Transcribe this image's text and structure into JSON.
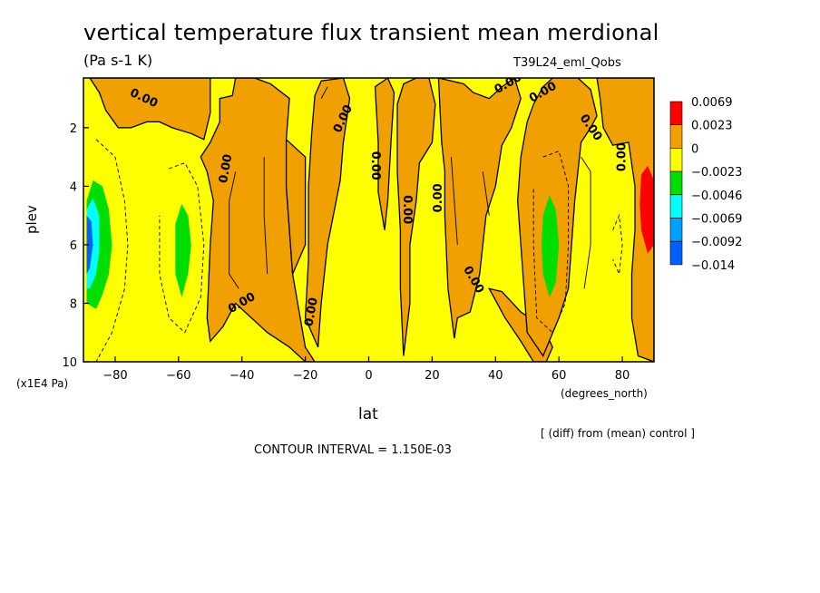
{
  "chart_data": {
    "type": "heatmap",
    "title": "vertical temperature flux transient mean merdional",
    "subtitle": "(Pa s-1 K)",
    "run_label": "T39L24_eml_Qobs",
    "xlabel": "lat",
    "x_unit": "(degrees_north)",
    "ylabel": "plev",
    "y_unit": "(x1E4 Pa)",
    "xlim": [
      -90,
      90
    ],
    "ylim": [
      10,
      0.3
    ],
    "x_ticks": [
      -80,
      -60,
      -40,
      -20,
      0,
      20,
      40,
      60,
      80
    ],
    "x_tick_labels": [
      "−80",
      "−60",
      "−40",
      "−20",
      "0",
      "20",
      "40",
      "60",
      "80"
    ],
    "y_ticks": [
      2,
      4,
      6,
      8,
      10
    ],
    "y_tick_labels": [
      "2",
      "4",
      "6",
      "8",
      "10"
    ],
    "contour_label": "0.00",
    "legend": {
      "placement": "right",
      "levels": [
        "0.0069",
        "0.0023",
        "0",
        "−0.0023",
        "−0.0046",
        "−0.0069",
        "−0.0092",
        "−0.014"
      ],
      "colors": [
        "#ff0000",
        "#f0a000",
        "#ffff00",
        "#00dd00",
        "#00ffff",
        "#00a0ff",
        "#0060ff"
      ]
    },
    "footer_note": "[ (diff) from (mean) control ]",
    "contour_interval": "CONTOUR INTERVAL = 1.150E-03",
    "regions": [
      {
        "level": "orange",
        "pts": [
          [
            -88,
            0.3
          ],
          [
            -85,
            0.8
          ],
          [
            -83,
            1.4
          ],
          [
            -79,
            2.0
          ],
          [
            -75,
            2.0
          ],
          [
            -70,
            1.8
          ],
          [
            -66,
            1.8
          ],
          [
            -62,
            2.0
          ],
          [
            -56,
            2.2
          ],
          [
            -52,
            2.4
          ],
          [
            -50,
            1.5
          ],
          [
            -50,
            0.3
          ]
        ]
      },
      {
        "level": "orange",
        "pts": [
          [
            -47,
            1.0
          ],
          [
            -43,
            0.9
          ],
          [
            -42,
            0.3
          ],
          [
            -36,
            0.3
          ],
          [
            -31,
            0.5
          ],
          [
            -25,
            1.0
          ],
          [
            -26,
            2.4
          ],
          [
            -26,
            4.0
          ],
          [
            -25,
            5.5
          ],
          [
            -24,
            7.0
          ],
          [
            -20,
            9.5
          ],
          [
            -17,
            10
          ],
          [
            -20,
            10
          ],
          [
            -25,
            9.5
          ],
          [
            -32,
            9.0
          ],
          [
            -37,
            8.5
          ],
          [
            -42,
            8.0
          ],
          [
            -46,
            8.8
          ],
          [
            -50,
            9.3
          ],
          [
            -51,
            8.5
          ],
          [
            -50,
            6.0
          ],
          [
            -49,
            4.5
          ],
          [
            -51,
            3.5
          ],
          [
            -53,
            3.0
          ],
          [
            -50,
            2.5
          ],
          [
            -47,
            1.8
          ]
        ]
      },
      {
        "level": "orange",
        "pts": [
          [
            -17,
            0.9
          ],
          [
            -15,
            0.4
          ],
          [
            -8,
            0.3
          ],
          [
            -6,
            1.0
          ],
          [
            -8,
            2.5
          ],
          [
            -9,
            3.8
          ],
          [
            -13,
            6.0
          ],
          [
            -15,
            8.0
          ],
          [
            -16,
            9.5
          ],
          [
            -20,
            8.5
          ],
          [
            -19,
            6.5
          ],
          [
            -19,
            4.0
          ],
          [
            -18,
            2.2
          ]
        ]
      },
      {
        "level": "orange",
        "pts": [
          [
            2,
            0.6
          ],
          [
            6,
            0.3
          ],
          [
            8,
            0.8
          ],
          [
            7,
            2.5
          ],
          [
            6,
            4.5
          ],
          [
            5,
            5.5
          ],
          [
            3,
            4.2
          ],
          [
            3,
            2.5
          ]
        ]
      },
      {
        "level": "orange",
        "pts": [
          [
            9,
            1.2
          ],
          [
            11,
            0.5
          ],
          [
            15,
            0.3
          ],
          [
            19,
            0.3
          ],
          [
            21,
            1.2
          ],
          [
            20,
            2.5
          ],
          [
            16,
            3.2
          ],
          [
            15,
            4.5
          ],
          [
            13,
            6.0
          ],
          [
            13,
            8.0
          ],
          [
            11,
            9.8
          ],
          [
            10,
            7.5
          ],
          [
            10,
            5.5
          ],
          [
            9,
            3.5
          ]
        ]
      },
      {
        "level": "orange",
        "pts": [
          [
            22,
            0.3
          ],
          [
            30,
            0.5
          ],
          [
            33,
            0.8
          ],
          [
            38,
            1.0
          ],
          [
            42,
            0.6
          ],
          [
            46,
            0.3
          ],
          [
            48,
            1.0
          ],
          [
            45,
            2.0
          ],
          [
            42,
            2.6
          ],
          [
            40,
            4.0
          ],
          [
            37,
            5.0
          ],
          [
            35,
            7.0
          ],
          [
            32,
            8.3
          ],
          [
            28,
            8.5
          ],
          [
            27,
            9.2
          ],
          [
            25,
            7.5
          ],
          [
            24,
            5.0
          ],
          [
            24,
            3.5
          ],
          [
            23,
            2.5
          ]
        ]
      },
      {
        "level": "orange",
        "pts": [
          [
            38,
            7.5
          ],
          [
            43,
            8.5
          ],
          [
            48,
            9.3
          ],
          [
            52,
            10
          ],
          [
            56,
            10
          ],
          [
            58,
            9.5
          ],
          [
            55,
            8.8
          ],
          [
            48,
            8.3
          ],
          [
            42,
            7.6
          ]
        ]
      },
      {
        "level": "orange",
        "pts": [
          [
            58,
            0.3
          ],
          [
            66,
            0.3
          ],
          [
            70,
            0.7
          ],
          [
            72,
            1.6
          ],
          [
            70,
            2.0
          ],
          [
            67,
            2.5
          ],
          [
            66,
            3.5
          ],
          [
            65,
            4.5
          ],
          [
            64,
            6.0
          ],
          [
            63,
            7.5
          ],
          [
            60,
            8.5
          ],
          [
            55,
            9.8
          ],
          [
            50,
            9.0
          ],
          [
            49,
            7.5
          ],
          [
            48,
            6.0
          ],
          [
            47,
            4.5
          ],
          [
            48,
            3.0
          ],
          [
            50,
            1.8
          ],
          [
            52,
            1.2
          ],
          [
            55,
            0.6
          ]
        ]
      },
      {
        "level": "orange",
        "pts": [
          [
            72,
            0.3
          ],
          [
            90,
            0.3
          ],
          [
            90,
            10
          ],
          [
            85,
            9.8
          ],
          [
            83,
            8.5
          ],
          [
            83,
            7.0
          ],
          [
            84,
            5.5
          ],
          [
            84,
            4.0
          ],
          [
            82,
            2.5
          ],
          [
            77,
            2.6
          ],
          [
            74,
            2.0
          ],
          [
            73,
            1.0
          ]
        ]
      },
      {
        "level": "orange",
        "pts": [
          [
            -26,
            2.4
          ],
          [
            -20,
            3.0
          ],
          [
            -20,
            6.0
          ],
          [
            -24,
            7.0
          ],
          [
            -25,
            5.5
          ],
          [
            -26,
            4.0
          ]
        ]
      },
      {
        "level": "green",
        "pts": [
          [
            -89,
            4.5
          ],
          [
            -87,
            3.8
          ],
          [
            -84,
            4.0
          ],
          [
            -82,
            4.8
          ],
          [
            -81,
            6.0
          ],
          [
            -82,
            7.0
          ],
          [
            -84,
            7.7
          ],
          [
            -86,
            8.2
          ],
          [
            -89,
            8.0
          ]
        ]
      },
      {
        "level": "cyan",
        "pts": [
          [
            -89,
            4.8
          ],
          [
            -87,
            4.4
          ],
          [
            -85,
            5.0
          ],
          [
            -85,
            6.2
          ],
          [
            -86,
            7.0
          ],
          [
            -88,
            7.5
          ],
          [
            -89,
            7.5
          ]
        ]
      },
      {
        "level": "blue",
        "pts": [
          [
            -89,
            5.0
          ],
          [
            -87.5,
            5.2
          ],
          [
            -87,
            6.0
          ],
          [
            -88,
            6.8
          ],
          [
            -89,
            7.0
          ]
        ]
      },
      {
        "level": "green",
        "pts": [
          [
            -61,
            5.3
          ],
          [
            -59,
            4.6
          ],
          [
            -57,
            5.0
          ],
          [
            -56,
            6.0
          ],
          [
            -57,
            7.0
          ],
          [
            -59,
            7.8
          ],
          [
            -61,
            7.0
          ]
        ]
      },
      {
        "level": "green",
        "pts": [
          [
            55,
            5.0
          ],
          [
            57,
            4.3
          ],
          [
            59,
            4.8
          ],
          [
            60,
            6.0
          ],
          [
            59,
            7.3
          ],
          [
            57,
            7.8
          ],
          [
            55,
            7.0
          ],
          [
            54.5,
            6.0
          ]
        ]
      },
      {
        "level": "red",
        "pts": [
          [
            86,
            3.6
          ],
          [
            88,
            3.3
          ],
          [
            90,
            3.8
          ],
          [
            90,
            6.0
          ],
          [
            88,
            6.3
          ],
          [
            86,
            5.5
          ],
          [
            85.5,
            4.6
          ]
        ]
      }
    ],
    "dashed_lines": [
      [
        [
          -86,
          2.4
        ],
        [
          -80,
          3.0
        ],
        [
          -77,
          4.5
        ],
        [
          -76,
          6.0
        ],
        [
          -77,
          7.5
        ],
        [
          -81,
          9.0
        ],
        [
          -86,
          10
        ]
      ],
      [
        [
          -63,
          3.4
        ],
        [
          -58,
          3.2
        ],
        [
          -54,
          4.0
        ],
        [
          -52,
          6.0
        ],
        [
          -53,
          7.8
        ],
        [
          -58,
          9.0
        ],
        [
          -63,
          8.5
        ],
        [
          -66,
          7.0
        ],
        [
          -66,
          5.0
        ]
      ],
      [
        [
          55,
          3.0
        ],
        [
          60,
          2.8
        ],
        [
          63,
          4.0
        ],
        [
          63,
          6.0
        ],
        [
          62,
          8.0
        ],
        [
          58,
          9.0
        ],
        [
          53,
          8.5
        ],
        [
          52,
          6.0
        ],
        [
          52,
          4.0
        ]
      ],
      [
        [
          77,
          5.5
        ],
        [
          79,
          5.0
        ],
        [
          80,
          6.0
        ],
        [
          79,
          7.0
        ],
        [
          77,
          6.5
        ]
      ]
    ],
    "inner_lines": [
      [
        [
          -42,
          3.5
        ],
        [
          -44,
          4.5
        ],
        [
          -44,
          7.0
        ],
        [
          -41,
          7.5
        ]
      ],
      [
        [
          -33,
          3.0
        ],
        [
          -33,
          5.0
        ],
        [
          -32,
          7.0
        ]
      ],
      [
        [
          -13,
          0.6
        ],
        [
          -15,
          1.0
        ]
      ],
      [
        [
          26,
          3.0
        ],
        [
          28,
          6.0
        ]
      ],
      [
        [
          36,
          3.5
        ],
        [
          38,
          5.0
        ]
      ],
      [
        [
          67,
          3.0
        ],
        [
          70,
          3.5
        ],
        [
          70,
          6.0
        ],
        [
          68,
          7.5
        ]
      ]
    ],
    "contour_labels": [
      {
        "x": -71,
        "y": 1.0,
        "angle": 25
      },
      {
        "x": -45,
        "y": 3.4,
        "angle": -80
      },
      {
        "x": -40,
        "y": 8.0,
        "angle": -30
      },
      {
        "x": -18,
        "y": 8.3,
        "angle": -80
      },
      {
        "x": -8,
        "y": 1.7,
        "angle": -65
      },
      {
        "x": 2,
        "y": 3.3,
        "angle": 90
      },
      {
        "x": 12,
        "y": 4.8,
        "angle": 90
      },
      {
        "x": 22,
        "y": 4.4,
        "angle": -90
      },
      {
        "x": 33,
        "y": 7.2,
        "angle": 60
      },
      {
        "x": 44,
        "y": 0.5,
        "angle": -30
      },
      {
        "x": 55,
        "y": 0.8,
        "angle": -30
      },
      {
        "x": 70,
        "y": 2.0,
        "angle": 55
      },
      {
        "x": 80,
        "y": 3.0,
        "angle": -90
      }
    ]
  }
}
